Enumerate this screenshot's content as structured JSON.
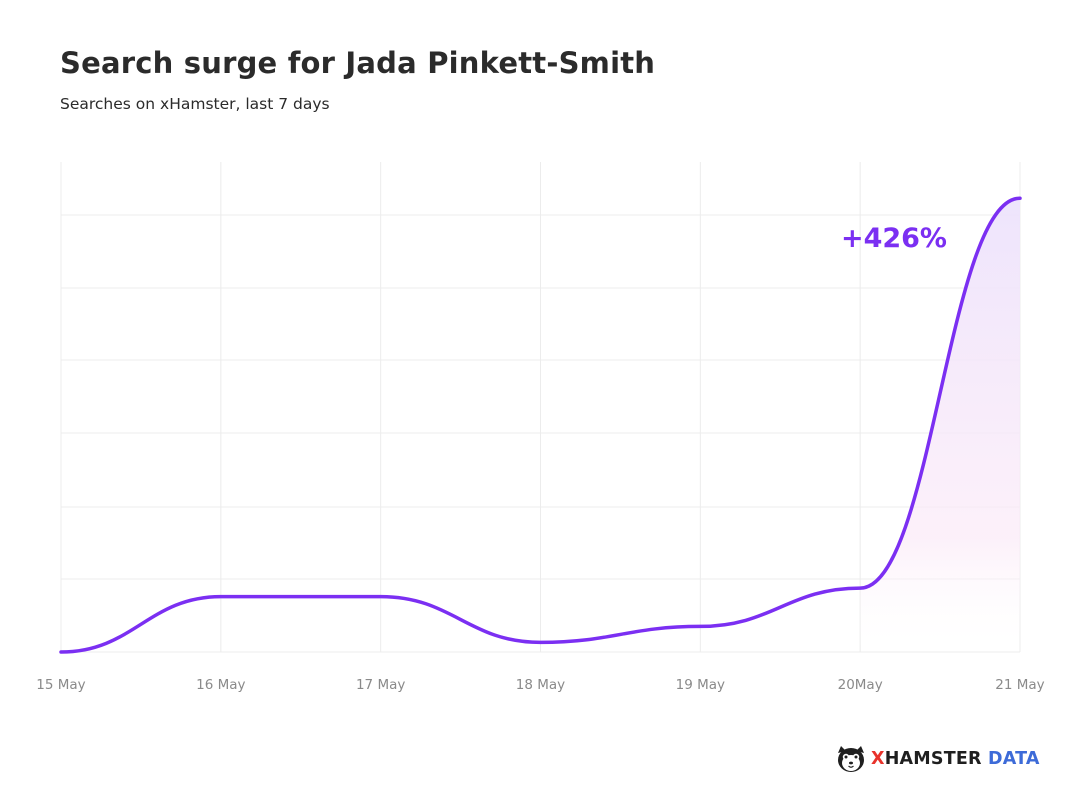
{
  "title": "Search surge for Jada Pinkett-Smith",
  "subtitle": "Searches on xHamster, last 7 days",
  "chart_data": {
    "type": "area",
    "x": [
      "15 May",
      "16 May",
      "17 May",
      "18 May",
      "19 May",
      "20May",
      "21 May"
    ],
    "values": [
      100,
      152,
      152,
      109,
      124,
      160,
      526
    ],
    "ylim": [
      100,
      560
    ],
    "xlabel": "",
    "ylabel": "",
    "grid": true,
    "annotation": {
      "text": "+426%",
      "x": "21 May"
    }
  },
  "colors": {
    "line": "#7b2ff2",
    "fill_top": "#e9dcfb",
    "fill_bottom": "#fbe9f6",
    "grid": "#ececec",
    "tick_text": "#8a8a8a"
  },
  "brand": {
    "x": "X",
    "hamster": "HAMSTER",
    "data": "DATA",
    "logo_icon": "hamster-logo-icon"
  }
}
